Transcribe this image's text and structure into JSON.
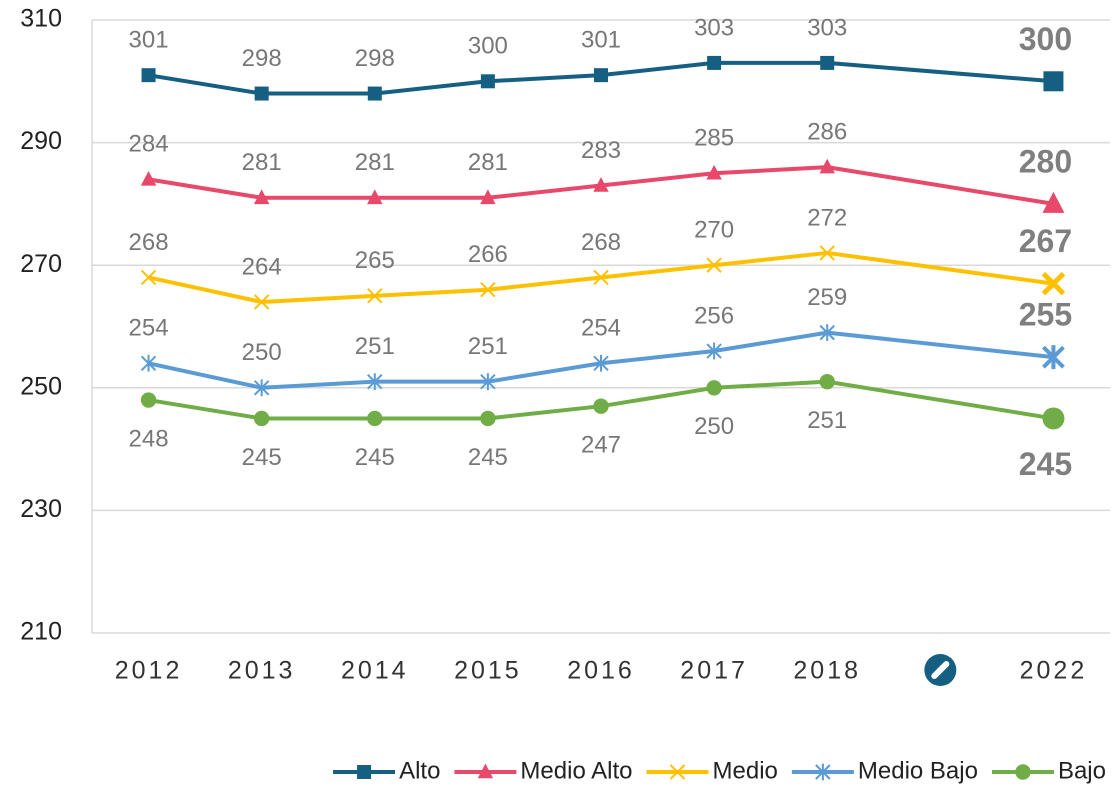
{
  "chart_data": {
    "type": "line",
    "categories": [
      "2012",
      "2013",
      "2014",
      "2015",
      "2016",
      "2017",
      "2018",
      null,
      "2022"
    ],
    "series": [
      {
        "name": "Alto",
        "color": "#156082",
        "marker": "square",
        "values": [
          301,
          298,
          298,
          300,
          301,
          303,
          303,
          null,
          300
        ]
      },
      {
        "name": "Medio Alto",
        "color": "#e8486a",
        "marker": "triangle",
        "values": [
          284,
          281,
          281,
          281,
          283,
          285,
          286,
          null,
          280
        ]
      },
      {
        "name": "Medio",
        "color": "#ffc000",
        "marker": "x",
        "values": [
          268,
          264,
          265,
          266,
          268,
          270,
          272,
          null,
          267
        ]
      },
      {
        "name": "Medio Bajo",
        "color": "#5b9bd5",
        "marker": "asterisk",
        "values": [
          254,
          250,
          251,
          251,
          254,
          256,
          259,
          null,
          255
        ]
      },
      {
        "name": "Bajo",
        "color": "#70ad47",
        "marker": "circle",
        "values": [
          248,
          245,
          245,
          245,
          247,
          250,
          251,
          null,
          245
        ]
      }
    ],
    "ylim": [
      210,
      310
    ],
    "yticks": [
      210,
      230,
      250,
      270,
      290,
      310
    ],
    "grid": true,
    "legend": "bottom"
  }
}
